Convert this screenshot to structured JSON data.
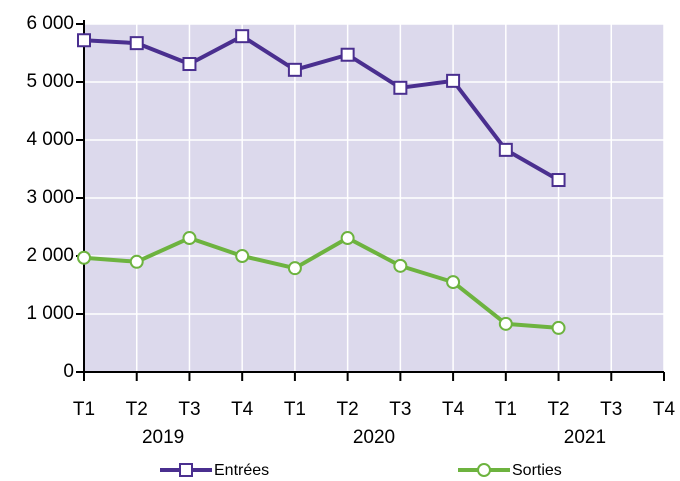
{
  "chart_data": {
    "type": "line",
    "categories": [
      "T1",
      "T2",
      "T3",
      "T4",
      "T1",
      "T2",
      "T3",
      "T4",
      "T1",
      "T2",
      "T3",
      "T4"
    ],
    "groups": [
      "2019",
      "2020",
      "2021"
    ],
    "series": [
      {
        "name": "Entrées",
        "color": "#4a2f8f",
        "marker": "square",
        "values": [
          5720,
          5670,
          5310,
          5790,
          5210,
          5470,
          4900,
          5020,
          3830,
          3310,
          null,
          null
        ]
      },
      {
        "name": "Sorties",
        "color": "#6db33f",
        "marker": "circle",
        "values": [
          1970,
          1900,
          2310,
          2000,
          1790,
          2310,
          1830,
          1550,
          830,
          760,
          null,
          null
        ]
      }
    ],
    "ylim": [
      0,
      6000
    ],
    "yticks": [
      0,
      {
        "value": 1000,
        "label": "1 000"
      },
      {
        "value": 2000,
        "label": "2 000"
      },
      {
        "value": 3000,
        "label": "3 000"
      },
      {
        "value": 4000,
        "label": "4 000"
      },
      {
        "value": 5000,
        "label": "5 000"
      },
      {
        "value": 6000,
        "label": "6 000"
      }
    ],
    "grid": true
  }
}
